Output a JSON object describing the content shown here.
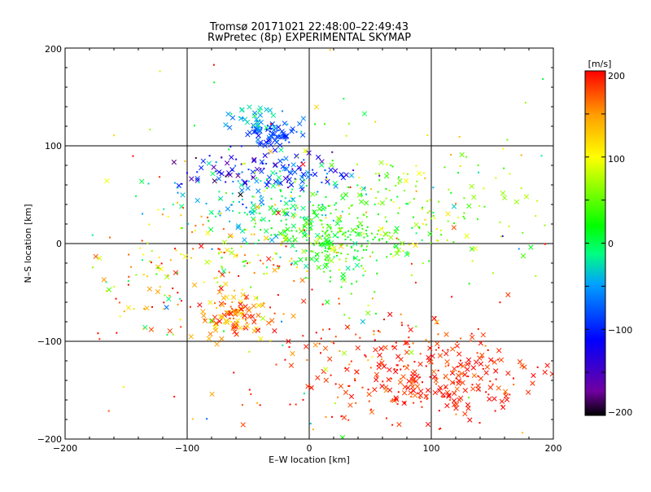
{
  "chart_data": {
    "type": "scatter",
    "title": "Tromsø 20171021 22:48:00–22:49:43",
    "subtitle": "RwPretec (8p) EXPERIMENTAL SKYMAP",
    "xlabel": "E–W location [km]",
    "ylabel": "N–S location [km]",
    "xlim": [
      -200,
      200
    ],
    "ylim": [
      -200,
      200
    ],
    "xticks": [
      "−200",
      "−100",
      "0",
      "100",
      "200"
    ],
    "yticks": [
      "−200",
      "−100",
      "0",
      "100",
      "200"
    ],
    "grid": true,
    "colorbar": {
      "unit": "[m/s]",
      "range": [
        -200,
        200
      ],
      "ticks": [
        "200",
        "100",
        "0",
        "−100",
        "−200"
      ],
      "colors": [
        "#000000",
        "#7000a0",
        "#0000ff",
        "#00a0ff",
        "#00ff80",
        "#00ff00",
        "#ffff00",
        "#ffa000",
        "#ff0000"
      ]
    },
    "markers": [
      "x",
      "dot"
    ],
    "clusters": [
      {
        "x": -30,
        "y": 112,
        "sx": 12,
        "sy": 8,
        "v": -90,
        "vs": 15,
        "n": 70,
        "xf": 0.7
      },
      {
        "x": -45,
        "y": 128,
        "sx": 15,
        "sy": 10,
        "v": -45,
        "vs": 20,
        "n": 40,
        "xf": 0.6
      },
      {
        "x": -20,
        "y": 75,
        "sx": 30,
        "sy": 10,
        "v": -110,
        "vs": 30,
        "n": 80,
        "xf": 0.6
      },
      {
        "x": -65,
        "y": 75,
        "sx": 20,
        "sy": 10,
        "v": -130,
        "vs": 50,
        "n": 40,
        "xf": 0.6
      },
      {
        "x": -40,
        "y": 45,
        "sx": 35,
        "sy": 15,
        "v": -35,
        "vs": 25,
        "n": 110,
        "xf": 0.3
      },
      {
        "x": 5,
        "y": 15,
        "sx": 35,
        "sy": 25,
        "v": 15,
        "vs": 20,
        "n": 200,
        "xf": 0.3
      },
      {
        "x": 25,
        "y": -5,
        "sx": 20,
        "sy": 15,
        "v": 30,
        "vs": 25,
        "n": 80,
        "xf": 0.3
      },
      {
        "x": -60,
        "y": -10,
        "sx": 40,
        "sy": 25,
        "v": 120,
        "vs": 45,
        "n": 110,
        "xf": 0.2
      },
      {
        "x": -60,
        "y": -75,
        "sx": 15,
        "sy": 12,
        "v": 160,
        "vs": 35,
        "n": 110,
        "xf": 0.7
      },
      {
        "x": -130,
        "y": -50,
        "sx": 25,
        "sy": 30,
        "v": 120,
        "vs": 80,
        "n": 60,
        "xf": 0.3
      },
      {
        "x": 90,
        "y": 35,
        "sx": 55,
        "sy": 40,
        "v": 70,
        "vs": 30,
        "n": 170,
        "xf": 0.2
      },
      {
        "x": 100,
        "y": -135,
        "sx": 45,
        "sy": 25,
        "v": 190,
        "vs": 12,
        "n": 280,
        "xf": 0.6
      },
      {
        "x": 20,
        "y": -120,
        "sx": 80,
        "sy": 40,
        "v": 180,
        "vs": 25,
        "n": 70,
        "xf": 0.2
      },
      {
        "x": 0,
        "y": 0,
        "sx": 110,
        "sy": 110,
        "v": 120,
        "vs": 90,
        "n": 150,
        "xf": 0.2
      }
    ]
  }
}
